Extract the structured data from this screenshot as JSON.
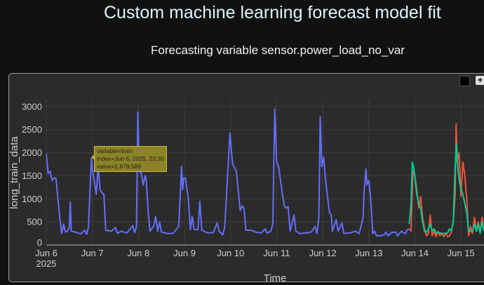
{
  "title": "Custom machine learning forecast model fit",
  "subtitle": "Forecasting variable sensor.power_load_no_var",
  "toolbar": {
    "icons": [
      "plotly-logo-icon",
      "expand-icon"
    ]
  },
  "tooltip": {
    "line1": "variable=train",
    "line2": "index=Jun 6, 2025, 23:30",
    "line3": "value=1,879.586"
  },
  "chart_data": {
    "type": "line",
    "title": "",
    "xlabel": "Time",
    "ylabel": "long_train_data",
    "xlim": [
      "2025-06-06 00:00",
      "2025-06-15 12:00"
    ],
    "ylim": [
      0,
      3150
    ],
    "yticks": [
      0,
      500,
      1000,
      1500,
      2000,
      2500,
      3000
    ],
    "xticks": [
      {
        "t": "2025-06-06",
        "label": "Jun 6",
        "sub": "2025"
      },
      {
        "t": "2025-06-07",
        "label": "Jun 7"
      },
      {
        "t": "2025-06-08",
        "label": "Jun 8"
      },
      {
        "t": "2025-06-09",
        "label": "Jun 9"
      },
      {
        "t": "2025-06-10",
        "label": "Jun 10"
      },
      {
        "t": "2025-06-11",
        "label": "Jun 11"
      },
      {
        "t": "2025-06-12",
        "label": "Jun 12"
      },
      {
        "t": "2025-06-13",
        "label": "Jun 13"
      },
      {
        "t": "2025-06-14",
        "label": "Jun 14"
      },
      {
        "t": "2025-06-15",
        "label": "Jun 15"
      }
    ],
    "grid": true,
    "series": [
      {
        "name": "train",
        "color": "#636efa",
        "points": [
          [
            "2025-06-06 00:00",
            1980
          ],
          [
            "2025-06-06 01:00",
            1550
          ],
          [
            "2025-06-06 02:00",
            1600
          ],
          [
            "2025-06-06 03:00",
            1400
          ],
          [
            "2025-06-06 04:00",
            1450
          ],
          [
            "2025-06-06 05:00",
            1450
          ],
          [
            "2025-06-06 07:00",
            600
          ],
          [
            "2025-06-06 08:00",
            250
          ],
          [
            "2025-06-06 09:00",
            450
          ],
          [
            "2025-06-06 10:00",
            280
          ],
          [
            "2025-06-06 11:00",
            300
          ],
          [
            "2025-06-06 12:00",
            380
          ],
          [
            "2025-06-06 12:30",
            930
          ],
          [
            "2025-06-06 13:00",
            300
          ],
          [
            "2025-06-06 15:00",
            280
          ],
          [
            "2025-06-06 18:00",
            240
          ],
          [
            "2025-06-06 20:00",
            320
          ],
          [
            "2025-06-06 21:00",
            230
          ],
          [
            "2025-06-06 22:00",
            400
          ],
          [
            "2025-06-06 22:40",
            1100
          ],
          [
            "2025-06-06 23:30",
            1880
          ],
          [
            "2025-06-07 00:00",
            1620
          ],
          [
            "2025-06-07 01:00",
            1400
          ],
          [
            "2025-06-07 02:00",
            1100
          ],
          [
            "2025-06-07 03:00",
            1700
          ],
          [
            "2025-06-07 04:00",
            1200
          ],
          [
            "2025-06-07 05:00",
            1130
          ],
          [
            "2025-06-07 06:00",
            1100
          ],
          [
            "2025-06-07 07:00",
            320
          ],
          [
            "2025-06-07 10:00",
            300
          ],
          [
            "2025-06-07 12:00",
            380
          ],
          [
            "2025-06-07 13:00",
            250
          ],
          [
            "2025-06-07 15:00",
            300
          ],
          [
            "2025-06-07 18:00",
            260
          ],
          [
            "2025-06-07 21:00",
            420
          ],
          [
            "2025-06-07 22:00",
            270
          ],
          [
            "2025-06-07 23:00",
            400
          ],
          [
            "2025-06-07 23:40",
            2880
          ],
          [
            "2025-06-08 00:30",
            1600
          ],
          [
            "2025-06-08 01:30",
            1550
          ],
          [
            "2025-06-08 02:30",
            1300
          ],
          [
            "2025-06-08 03:30",
            1500
          ],
          [
            "2025-06-08 04:00",
            1450
          ],
          [
            "2025-06-08 05:00",
            750
          ],
          [
            "2025-06-08 06:00",
            300
          ],
          [
            "2025-06-08 08:00",
            420
          ],
          [
            "2025-06-08 09:00",
            620
          ],
          [
            "2025-06-08 10:00",
            300
          ],
          [
            "2025-06-08 11:00",
            500
          ],
          [
            "2025-06-08 12:00",
            280
          ],
          [
            "2025-06-08 15:00",
            250
          ],
          [
            "2025-06-08 18:00",
            250
          ],
          [
            "2025-06-08 21:00",
            400
          ],
          [
            "2025-06-08 22:30",
            1700
          ],
          [
            "2025-06-08 23:00",
            1200
          ],
          [
            "2025-06-08 23:30",
            1450
          ],
          [
            "2025-06-09 00:30",
            1450
          ],
          [
            "2025-06-09 02:00",
            1000
          ],
          [
            "2025-06-09 03:00",
            330
          ],
          [
            "2025-06-09 04:00",
            620
          ],
          [
            "2025-06-09 05:00",
            340
          ],
          [
            "2025-06-09 07:00",
            330
          ],
          [
            "2025-06-09 08:00",
            950
          ],
          [
            "2025-06-09 09:00",
            320
          ],
          [
            "2025-06-09 12:00",
            260
          ],
          [
            "2025-06-09 15:00",
            270
          ],
          [
            "2025-06-09 17:00",
            480
          ],
          [
            "2025-06-09 18:00",
            300
          ],
          [
            "2025-06-09 20:00",
            220
          ],
          [
            "2025-06-09 21:00",
            400
          ],
          [
            "2025-06-09 23:40",
            2430
          ],
          [
            "2025-06-10 01:00",
            1760
          ],
          [
            "2025-06-10 03:00",
            1600
          ],
          [
            "2025-06-10 05:00",
            750
          ],
          [
            "2025-06-10 06:00",
            850
          ],
          [
            "2025-06-10 07:00",
            780
          ],
          [
            "2025-06-10 08:00",
            320
          ],
          [
            "2025-06-10 11:00",
            320
          ],
          [
            "2025-06-10 13:00",
            280
          ],
          [
            "2025-06-10 16:00",
            260
          ],
          [
            "2025-06-10 18:00",
            350
          ],
          [
            "2025-06-10 19:00",
            260
          ],
          [
            "2025-06-10 21:00",
            300
          ],
          [
            "2025-06-10 22:00",
            450
          ],
          [
            "2025-06-10 23:00",
            2950
          ],
          [
            "2025-06-11 00:00",
            1800
          ],
          [
            "2025-06-11 01:00",
            1700
          ],
          [
            "2025-06-11 02:00",
            1400
          ],
          [
            "2025-06-11 03:00",
            1100
          ],
          [
            "2025-06-11 04:00",
            850
          ],
          [
            "2025-06-11 05:00",
            800
          ],
          [
            "2025-06-11 06:00",
            830
          ],
          [
            "2025-06-11 07:00",
            300
          ],
          [
            "2025-06-11 09:00",
            650
          ],
          [
            "2025-06-11 10:00",
            300
          ],
          [
            "2025-06-11 12:00",
            250
          ],
          [
            "2025-06-11 15:00",
            260
          ],
          [
            "2025-06-11 18:00",
            280
          ],
          [
            "2025-06-11 20:00",
            400
          ],
          [
            "2025-06-11 21:00",
            250
          ],
          [
            "2025-06-11 22:00",
            600
          ],
          [
            "2025-06-11 22:40",
            2780
          ],
          [
            "2025-06-11 23:30",
            1700
          ],
          [
            "2025-06-12 00:30",
            1900
          ],
          [
            "2025-06-12 01:30",
            1400
          ],
          [
            "2025-06-12 02:30",
            1050
          ],
          [
            "2025-06-12 03:30",
            700
          ],
          [
            "2025-06-12 04:30",
            650
          ],
          [
            "2025-06-12 05:00",
            300
          ],
          [
            "2025-06-12 07:00",
            550
          ],
          [
            "2025-06-12 08:00",
            300
          ],
          [
            "2025-06-12 10:00",
            480
          ],
          [
            "2025-06-12 11:00",
            250
          ],
          [
            "2025-06-12 14:00",
            260
          ],
          [
            "2025-06-12 17:00",
            300
          ],
          [
            "2025-06-12 19:00",
            250
          ],
          [
            "2025-06-12 21:00",
            600
          ],
          [
            "2025-06-12 21:30",
            1100
          ],
          [
            "2025-06-12 22:30",
            1650
          ],
          [
            "2025-06-12 23:00",
            1300
          ],
          [
            "2025-06-13 00:00",
            1400
          ],
          [
            "2025-06-13 01:00",
            1000
          ],
          [
            "2025-06-13 02:00",
            250
          ],
          [
            "2025-06-13 03:00",
            300
          ],
          [
            "2025-06-13 04:00",
            200
          ],
          [
            "2025-06-13 06:00",
            200
          ],
          [
            "2025-06-13 08:00",
            220
          ],
          [
            "2025-06-13 09:00",
            280
          ],
          [
            "2025-06-13 10:00",
            200
          ],
          [
            "2025-06-13 12:00",
            270
          ],
          [
            "2025-06-13 14:00",
            280
          ],
          [
            "2025-06-13 15:00",
            200
          ],
          [
            "2025-06-13 17:00",
            300
          ],
          [
            "2025-06-13 19:00",
            240
          ],
          [
            "2025-06-13 20:00",
            330
          ],
          [
            "2025-06-13 21:00",
            350
          ]
        ]
      },
      {
        "color": "#ef553b",
        "points": [
          [
            "2025-06-13 21:00",
            350
          ],
          [
            "2025-06-13 22:00",
            300
          ],
          [
            "2025-06-13 23:00",
            1600
          ],
          [
            "2025-06-14 00:00",
            1500
          ],
          [
            "2025-06-14 01:00",
            1200
          ],
          [
            "2025-06-14 02:00",
            800
          ],
          [
            "2025-06-14 03:00",
            1050
          ],
          [
            "2025-06-14 04:00",
            600
          ],
          [
            "2025-06-14 05:00",
            350
          ],
          [
            "2025-06-14 06:00",
            200
          ],
          [
            "2025-06-14 07:00",
            240
          ],
          [
            "2025-06-14 08:00",
            650
          ],
          [
            "2025-06-14 09:00",
            200
          ],
          [
            "2025-06-14 10:00",
            300
          ],
          [
            "2025-06-14 11:00",
            180
          ],
          [
            "2025-06-14 12:00",
            300
          ],
          [
            "2025-06-14 13:00",
            200
          ],
          [
            "2025-06-14 14:00",
            260
          ],
          [
            "2025-06-14 15:00",
            180
          ],
          [
            "2025-06-14 16:00",
            250
          ],
          [
            "2025-06-14 17:00",
            180
          ],
          [
            "2025-06-14 18:00",
            200
          ],
          [
            "2025-06-14 19:00",
            280
          ],
          [
            "2025-06-14 20:00",
            500
          ],
          [
            "2025-06-14 21:00",
            1100
          ],
          [
            "2025-06-14 21:30",
            2630
          ],
          [
            "2025-06-14 22:00",
            1800
          ],
          [
            "2025-06-14 23:00",
            2000
          ],
          [
            "2025-06-15 00:00",
            1050
          ],
          [
            "2025-06-15 01:00",
            1800
          ],
          [
            "2025-06-15 02:00",
            1500
          ],
          [
            "2025-06-15 03:00",
            1000
          ],
          [
            "2025-06-15 04:00",
            200
          ],
          [
            "2025-06-15 05:00",
            400
          ],
          [
            "2025-06-15 06:00",
            250
          ],
          [
            "2025-06-15 07:00",
            600
          ],
          [
            "2025-06-15 08:00",
            300
          ],
          [
            "2025-06-15 09:00",
            500
          ],
          [
            "2025-06-15 10:00",
            280
          ],
          [
            "2025-06-15 11:00",
            600
          ],
          [
            "2025-06-15 12:00",
            300
          ]
        ]
      },
      {
        "color": "#00cc96",
        "points": [
          [
            "2025-06-13 21:00",
            450
          ],
          [
            "2025-06-13 22:00",
            900
          ],
          [
            "2025-06-13 22:40",
            1800
          ],
          [
            "2025-06-13 23:30",
            1650
          ],
          [
            "2025-06-14 01:00",
            1100
          ],
          [
            "2025-06-14 02:00",
            900
          ],
          [
            "2025-06-14 03:00",
            800
          ],
          [
            "2025-06-14 04:00",
            500
          ],
          [
            "2025-06-14 05:00",
            300
          ],
          [
            "2025-06-14 06:00",
            280
          ],
          [
            "2025-06-14 07:00",
            350
          ],
          [
            "2025-06-14 08:00",
            450
          ],
          [
            "2025-06-14 09:00",
            300
          ],
          [
            "2025-06-14 10:00",
            350
          ],
          [
            "2025-06-14 11:00",
            260
          ],
          [
            "2025-06-14 13:00",
            260
          ],
          [
            "2025-06-14 15:00",
            250
          ],
          [
            "2025-06-14 17:00",
            260
          ],
          [
            "2025-06-14 18:00",
            350
          ],
          [
            "2025-06-14 19:00",
            300
          ],
          [
            "2025-06-14 20:00",
            500
          ],
          [
            "2025-06-14 21:00",
            1700
          ],
          [
            "2025-06-14 21:40",
            2200
          ],
          [
            "2025-06-14 22:30",
            1600
          ],
          [
            "2025-06-14 23:30",
            1300
          ],
          [
            "2025-06-15 01:00",
            1100
          ],
          [
            "2025-06-15 02:00",
            900
          ],
          [
            "2025-06-15 03:00",
            700
          ],
          [
            "2025-06-15 04:00",
            300
          ],
          [
            "2025-06-15 06:00",
            300
          ],
          [
            "2025-06-15 07:00",
            450
          ],
          [
            "2025-06-15 08:00",
            300
          ],
          [
            "2025-06-15 09:00",
            450
          ],
          [
            "2025-06-15 10:00",
            250
          ],
          [
            "2025-06-15 11:00",
            500
          ],
          [
            "2025-06-15 12:00",
            300
          ]
        ]
      }
    ]
  }
}
